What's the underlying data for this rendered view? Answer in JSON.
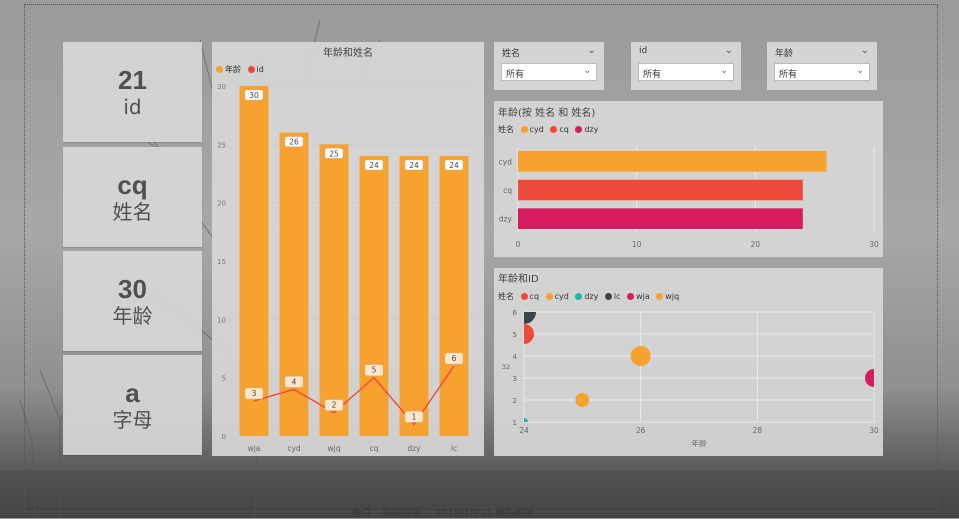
{
  "kpis": [
    {
      "value": "21",
      "label": "id"
    },
    {
      "value": "cq",
      "label": "姓名"
    },
    {
      "value": "30",
      "label": "年龄"
    },
    {
      "value": "a",
      "label": "字母"
    }
  ],
  "slicers": [
    {
      "title": "姓名",
      "value": "所有"
    },
    {
      "title": "id",
      "value": "所有"
    },
    {
      "title": "年龄",
      "value": "所有"
    }
  ],
  "footer_text": "备注：数据根据...   2018/10/11.最后刷新",
  "colors": {
    "orange": "#F7A12F",
    "red": "#EE4A3C",
    "crimson": "#D81B60",
    "teal": "#1CB5AC",
    "dark": "#3A4348",
    "grid": "#e8e8e8"
  },
  "chart_data": [
    {
      "type": "bar",
      "title": "年龄和姓名",
      "legend": [
        {
          "name": "年龄",
          "color": "#F7A12F"
        },
        {
          "name": "id",
          "color": "#EE4A3C"
        }
      ],
      "categories": [
        "wja",
        "cyd",
        "wjq",
        "cq",
        "dzy",
        "lc"
      ],
      "series": [
        {
          "name": "年龄",
          "kind": "bar",
          "values": [
            30,
            26,
            25,
            24,
            24,
            24
          ]
        },
        {
          "name": "id",
          "kind": "line",
          "values": [
            3,
            4,
            2,
            5,
            1,
            6
          ]
        }
      ],
      "ylim": [
        0,
        30
      ],
      "yticks": [
        0,
        5,
        10,
        15,
        20,
        25,
        30
      ]
    },
    {
      "type": "bar",
      "orientation": "horizontal",
      "title": "年龄(按 姓名 和 姓名)",
      "legend_title": "姓名",
      "legend": [
        {
          "name": "cyd",
          "color": "#F7A12F"
        },
        {
          "name": "cq",
          "color": "#EE4A3C"
        },
        {
          "name": "dzy",
          "color": "#D81B60"
        }
      ],
      "categories": [
        "cyd",
        "cq",
        "dzy"
      ],
      "values": [
        26,
        24,
        24
      ],
      "xlim": [
        0,
        30
      ],
      "xticks": [
        0,
        10,
        20,
        30
      ]
    },
    {
      "type": "scatter",
      "title": "年龄和ID",
      "legend_title": "姓名",
      "legend": [
        {
          "name": "cq",
          "color": "#EE4A3C"
        },
        {
          "name": "cyd",
          "color": "#F7A12F"
        },
        {
          "name": "dzy",
          "color": "#1CB5AC"
        },
        {
          "name": "lc",
          "color": "#3A4348"
        },
        {
          "name": "wja",
          "color": "#D81B60"
        },
        {
          "name": "wjq",
          "color": "#F7A12F"
        }
      ],
      "xlabel": "年龄",
      "ylabel": "32",
      "xlim": [
        24,
        30
      ],
      "ylim": [
        1,
        6
      ],
      "xticks": [
        24,
        26,
        28,
        30
      ],
      "yticks": [
        1,
        2,
        3,
        4,
        5,
        6
      ],
      "points": [
        {
          "name": "cq",
          "x": 24,
          "y": 5,
          "size": 10,
          "color": "#EE4A3C"
        },
        {
          "name": "lc",
          "x": 24,
          "y": 6,
          "size": 12,
          "color": "#3A4348"
        },
        {
          "name": "dzy",
          "x": 24,
          "y": 1,
          "size": 4,
          "color": "#1CB5AC"
        },
        {
          "name": "wjq",
          "x": 25,
          "y": 2,
          "size": 7,
          "color": "#F7A12F"
        },
        {
          "name": "cyd",
          "x": 26,
          "y": 4,
          "size": 10,
          "color": "#F7A12F"
        },
        {
          "name": "wja",
          "x": 30,
          "y": 3,
          "size": 9,
          "color": "#D81B60"
        }
      ]
    }
  ]
}
